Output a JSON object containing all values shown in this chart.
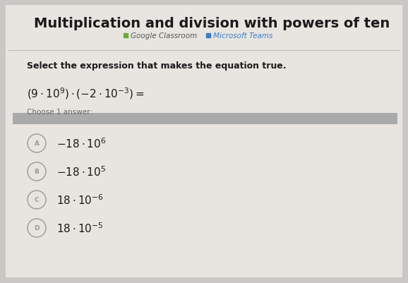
{
  "title": "Multiplication and division with powers of ten",
  "subtitle_google": "Google Classroom",
  "subtitle_microsoft": "Microsoft Teams",
  "question_label": "Select the expression that makes the equation true.",
  "choose_label": "Choose 1 answer:",
  "bg_color": "#cac8c5",
  "card_color": "#e8e5e0",
  "title_color": "#1a1a1a",
  "subtitle_google_color": "#555555",
  "subtitle_ms_color": "#3a7cc7",
  "question_color": "#1a1a1a",
  "answer_color": "#1a1a1a",
  "divider_color": "#aaaaaa",
  "circle_edge_color": "#999999",
  "google_icon_color": "#6aaa3a",
  "ms_icon_color": "#3a7cc7",
  "title_fontsize": 14,
  "subtitle_fontsize": 7.5,
  "question_fontsize": 9,
  "equation_fontsize": 11,
  "choose_fontsize": 7.5,
  "answer_fontsize": 11,
  "letter_fontsize": 6.5,
  "answers": [
    {
      "letter": "A",
      "latex": "$-18 \\cdot 10^6$"
    },
    {
      "letter": "B",
      "latex": "$-18 \\cdot 10^5$"
    },
    {
      "letter": "C",
      "latex": "$18 \\cdot 10^{-6}$"
    },
    {
      "letter": "D",
      "latex": "$18 \\cdot 10^{-5}$"
    }
  ]
}
